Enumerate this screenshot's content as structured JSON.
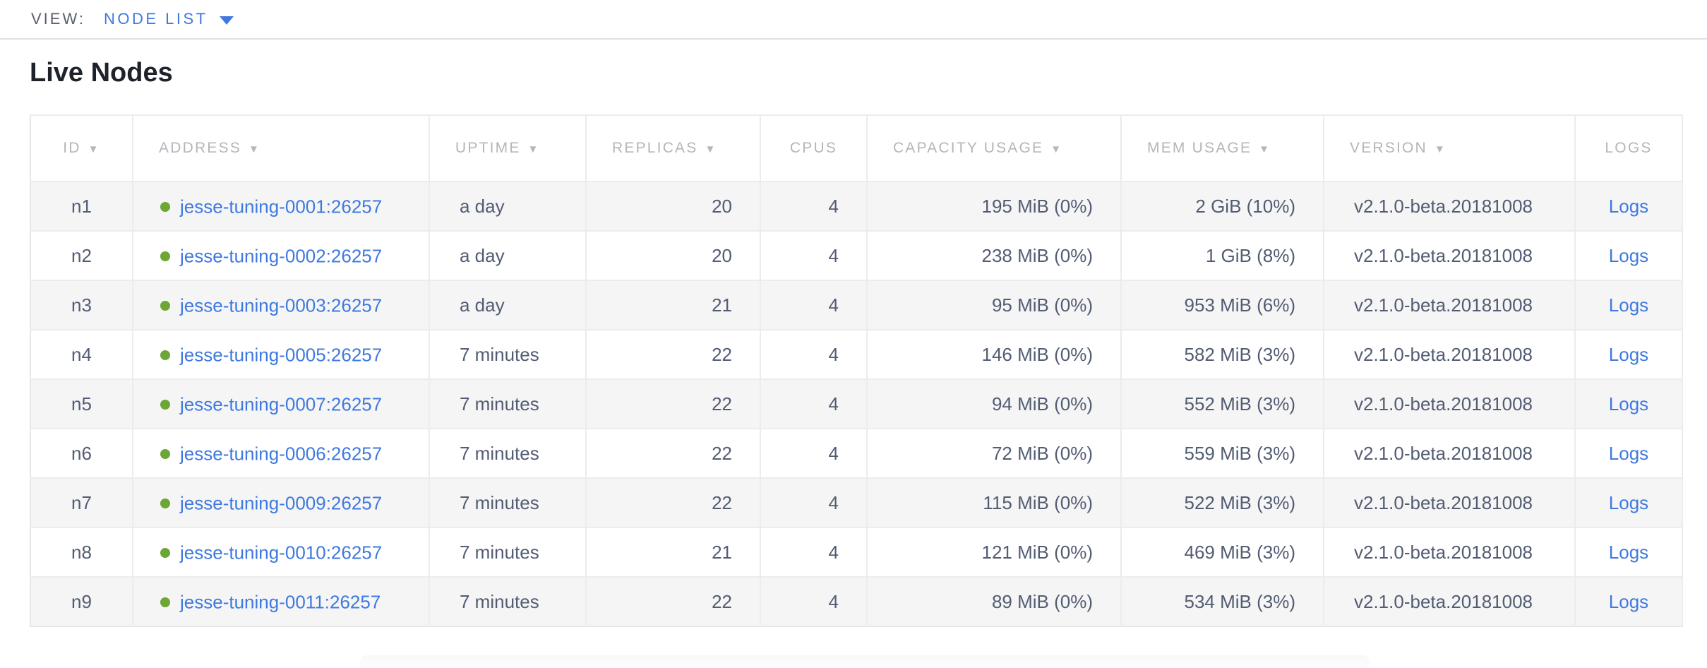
{
  "view_bar": {
    "label": "VIEW:",
    "selected": "NODE LIST"
  },
  "page": {
    "title": "Live Nodes"
  },
  "colors": {
    "link_blue": "#3f79e0",
    "status_green": "#6ca634",
    "header_gray": "#b4b6bb",
    "body_text": "#525c72",
    "title_text": "#1e222a",
    "row_stripe": "#f5f5f6",
    "border": "#ececee"
  },
  "table": {
    "logs_label": "Logs",
    "columns": [
      {
        "label": "ID",
        "sortable": true
      },
      {
        "label": "ADDRESS",
        "sortable": true
      },
      {
        "label": "UPTIME",
        "sortable": true
      },
      {
        "label": "REPLICAS",
        "sortable": true
      },
      {
        "label": "CPUS",
        "sortable": false
      },
      {
        "label": "CAPACITY USAGE",
        "sortable": true
      },
      {
        "label": "MEM USAGE",
        "sortable": true
      },
      {
        "label": "VERSION",
        "sortable": true
      },
      {
        "label": "LOGS",
        "sortable": false
      }
    ],
    "rows": [
      {
        "id": "n1",
        "status": "live",
        "address": "jesse-tuning-0001:26257",
        "uptime": "a day",
        "replicas": "20",
        "cpus": "4",
        "capacity_usage": "195 MiB (0%)",
        "mem_usage": "2 GiB (10%)",
        "version": "v2.1.0-beta.20181008"
      },
      {
        "id": "n2",
        "status": "live",
        "address": "jesse-tuning-0002:26257",
        "uptime": "a day",
        "replicas": "20",
        "cpus": "4",
        "capacity_usage": "238 MiB (0%)",
        "mem_usage": "1 GiB (8%)",
        "version": "v2.1.0-beta.20181008"
      },
      {
        "id": "n3",
        "status": "live",
        "address": "jesse-tuning-0003:26257",
        "uptime": "a day",
        "replicas": "21",
        "cpus": "4",
        "capacity_usage": "95 MiB (0%)",
        "mem_usage": "953 MiB (6%)",
        "version": "v2.1.0-beta.20181008"
      },
      {
        "id": "n4",
        "status": "live",
        "address": "jesse-tuning-0005:26257",
        "uptime": "7 minutes",
        "replicas": "22",
        "cpus": "4",
        "capacity_usage": "146 MiB (0%)",
        "mem_usage": "582 MiB (3%)",
        "version": "v2.1.0-beta.20181008"
      },
      {
        "id": "n5",
        "status": "live",
        "address": "jesse-tuning-0007:26257",
        "uptime": "7 minutes",
        "replicas": "22",
        "cpus": "4",
        "capacity_usage": "94 MiB (0%)",
        "mem_usage": "552 MiB (3%)",
        "version": "v2.1.0-beta.20181008"
      },
      {
        "id": "n6",
        "status": "live",
        "address": "jesse-tuning-0006:26257",
        "uptime": "7 minutes",
        "replicas": "22",
        "cpus": "4",
        "capacity_usage": "72 MiB (0%)",
        "mem_usage": "559 MiB (3%)",
        "version": "v2.1.0-beta.20181008"
      },
      {
        "id": "n7",
        "status": "live",
        "address": "jesse-tuning-0009:26257",
        "uptime": "7 minutes",
        "replicas": "22",
        "cpus": "4",
        "capacity_usage": "115 MiB (0%)",
        "mem_usage": "522 MiB (3%)",
        "version": "v2.1.0-beta.20181008"
      },
      {
        "id": "n8",
        "status": "live",
        "address": "jesse-tuning-0010:26257",
        "uptime": "7 minutes",
        "replicas": "21",
        "cpus": "4",
        "capacity_usage": "121 MiB (0%)",
        "mem_usage": "469 MiB (3%)",
        "version": "v2.1.0-beta.20181008"
      },
      {
        "id": "n9",
        "status": "live",
        "address": "jesse-tuning-0011:26257",
        "uptime": "7 minutes",
        "replicas": "22",
        "cpus": "4",
        "capacity_usage": "89 MiB (0%)",
        "mem_usage": "534 MiB (3%)",
        "version": "v2.1.0-beta.20181008"
      }
    ]
  }
}
